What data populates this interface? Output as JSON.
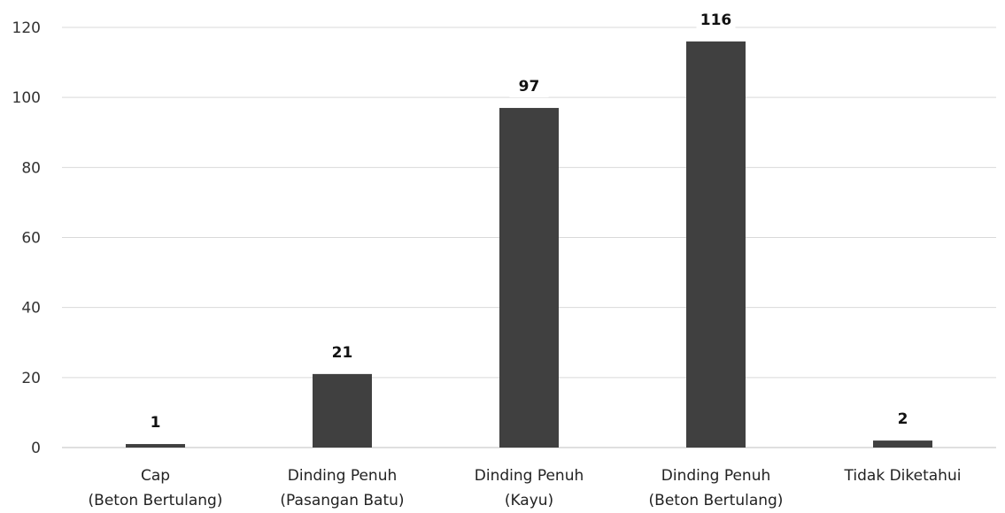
{
  "chart_data": {
    "type": "bar",
    "categories": [
      [
        "Cap",
        "(Beton Bertulang)"
      ],
      [
        "Dinding Penuh",
        "(Pasangan Batu)"
      ],
      [
        "Dinding Penuh",
        "(Kayu)"
      ],
      [
        "Dinding Penuh",
        "(Beton Bertulang)"
      ],
      [
        "Tidak Diketahui"
      ]
    ],
    "values": [
      1,
      21,
      97,
      116,
      2
    ],
    "data_labels": [
      "1",
      "21",
      "97",
      "116",
      "2"
    ],
    "title": "",
    "xlabel": "",
    "ylabel": "",
    "ylim": [
      0,
      120
    ],
    "yticks": [
      0,
      20,
      40,
      60,
      80,
      100,
      120
    ],
    "grid": true,
    "legend": "none",
    "bar_color": "#404040"
  }
}
